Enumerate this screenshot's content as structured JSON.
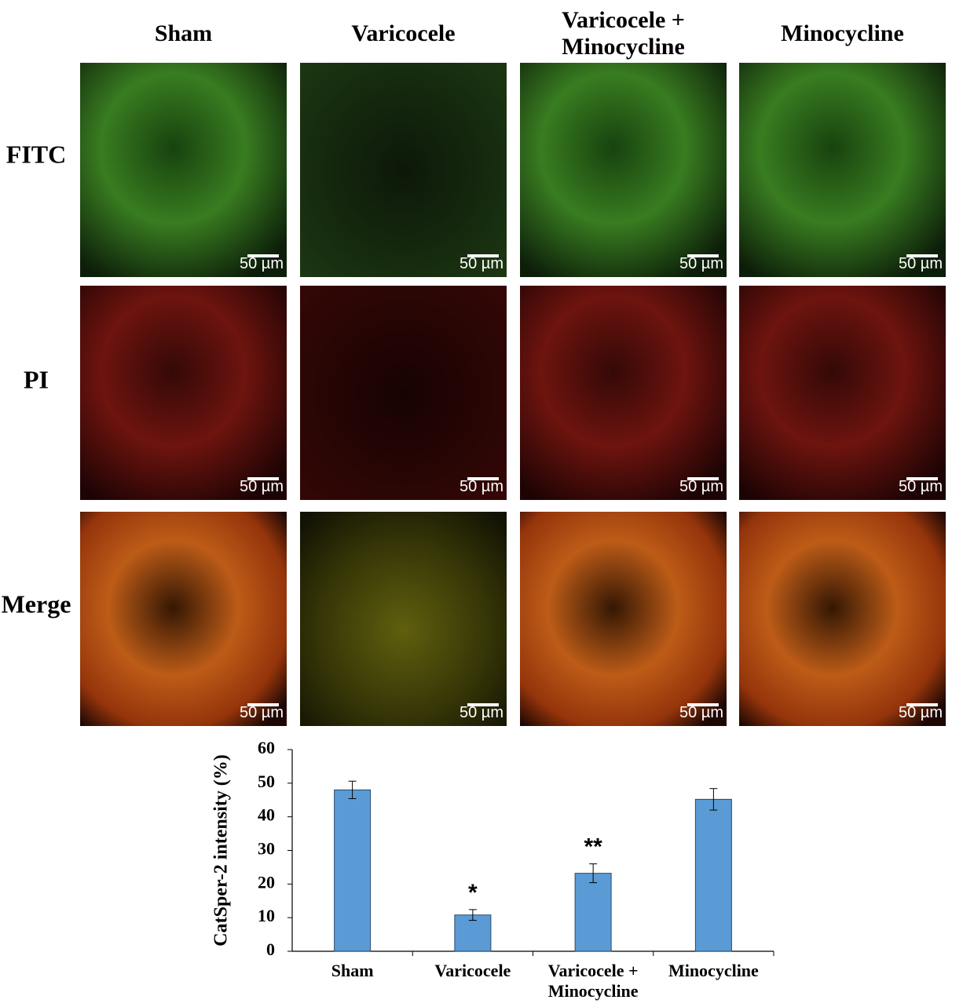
{
  "figure": {
    "columns": [
      "Sham",
      "Varicocele",
      "Varicocele + Minocycline",
      "Minocycline"
    ],
    "rows": [
      "FITC",
      "PI",
      "Merge"
    ],
    "scale_bar": "50 µm"
  },
  "chart_data": {
    "type": "bar",
    "y_label": "CatSper-2 intensity (%)",
    "categories": [
      "Sham",
      "Varicocele",
      "Varicocele + Minocycline",
      "Minocycline"
    ],
    "values": [
      48,
      10.8,
      23.2,
      45.2
    ],
    "errors": [
      2.6,
      1.6,
      2.8,
      3.2
    ],
    "annotations": [
      null,
      "*",
      "**",
      null
    ],
    "color": "#5b9bd5",
    "ylim": [
      0,
      60
    ],
    "yticks": [
      0,
      10,
      20,
      30,
      40,
      50,
      60
    ]
  }
}
